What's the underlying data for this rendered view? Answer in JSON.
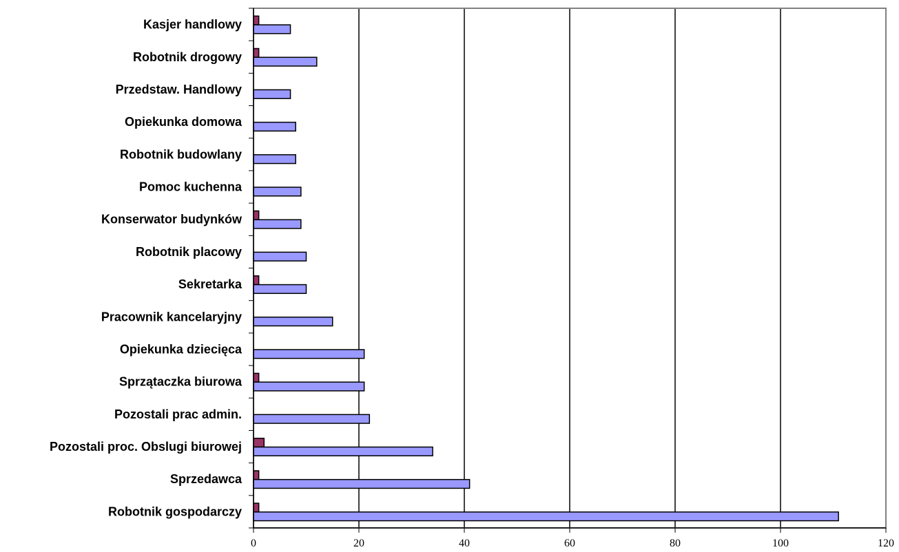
{
  "chart_data": {
    "type": "bar",
    "orientation": "horizontal",
    "categories": [
      "Robotnik gospodarczy",
      "Sprzedawca",
      "Pozostali proc. Obslugi biurowej",
      "Pozostali prac admin.",
      "Sprzątaczka biurowa",
      "Opiekunka dziecięca",
      "Pracownik kancelaryjny",
      "Sekretarka",
      "Robotnik placowy",
      "Konserwator budynków",
      "Pomoc kuchenna",
      "Robotnik budowlany",
      "Opiekunka domowa",
      "Przedstaw. Handlowy",
      "Robotnik drogowy",
      "Kasjer handlowy"
    ],
    "series": [
      {
        "values": [
          111,
          41,
          34,
          22,
          21,
          21,
          15,
          10,
          10,
          9,
          9,
          8,
          8,
          7,
          12,
          7
        ],
        "color": "#9999ff"
      },
      {
        "values": [
          1,
          1,
          2,
          0,
          1,
          0,
          0,
          1,
          0,
          1,
          0,
          0,
          0,
          0,
          1,
          1
        ],
        "color": "#993366"
      }
    ],
    "x_ticks": [
      "0",
      "20",
      "40",
      "60",
      "80",
      "100",
      "120"
    ],
    "xlim": [
      0,
      120
    ],
    "grid": true,
    "legend": "none"
  }
}
